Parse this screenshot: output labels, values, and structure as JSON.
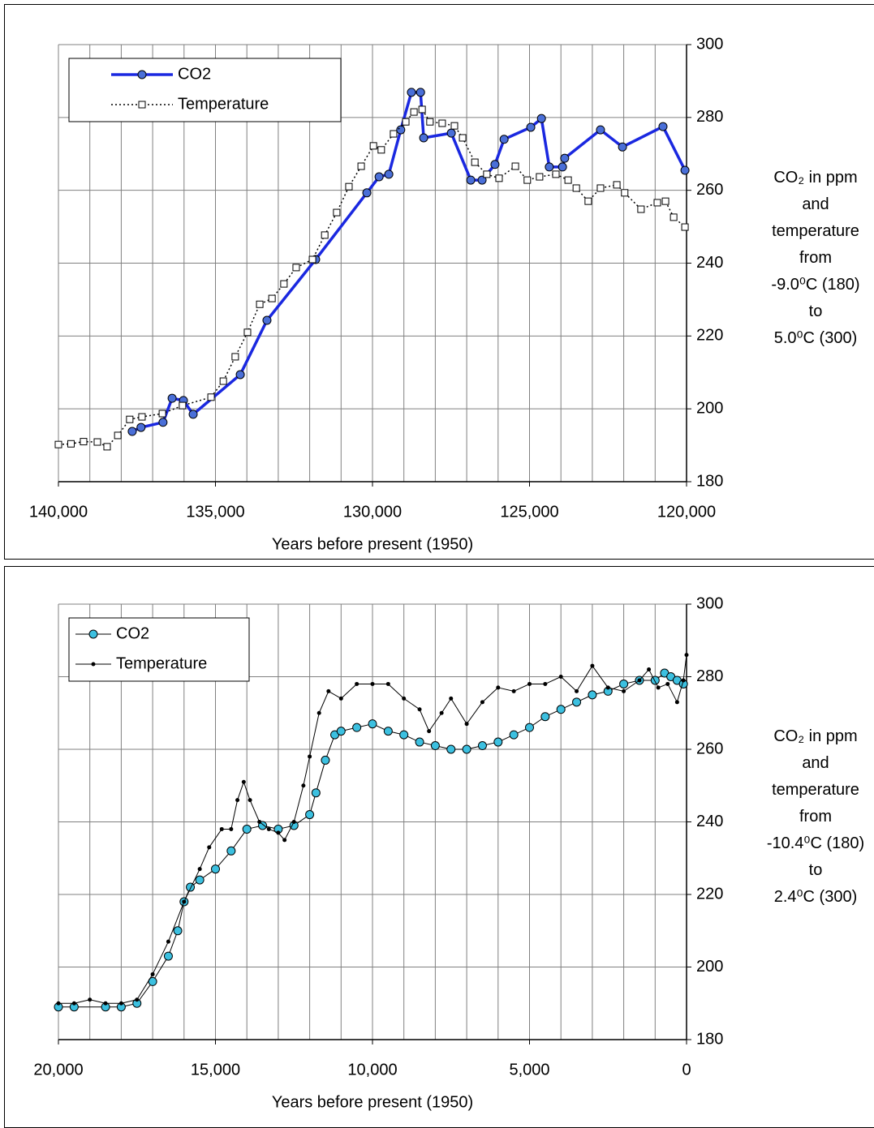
{
  "chart_data": [
    {
      "type": "line",
      "x_label": "Years before present (1950)",
      "y_label": [
        "CO₂ in ppm",
        "and",
        "temperature",
        "from",
        "-9.0⁰C (180)",
        "to",
        "5.0⁰C (300)"
      ],
      "xlim": [
        140000,
        120000
      ],
      "xticks": [
        {
          "value": 140000,
          "label": "140,000"
        },
        {
          "value": 135000,
          "label": "135,000"
        },
        {
          "value": 130000,
          "label": "130,000"
        },
        {
          "value": 125000,
          "label": "125,000"
        },
        {
          "value": 120000,
          "label": "120,000"
        }
      ],
      "x_minor_ticks": [
        139000,
        138000,
        137000,
        136000,
        134000,
        133000,
        132000,
        131000,
        129000,
        128000,
        127000,
        126000,
        124000,
        123000,
        122000,
        121000
      ],
      "ylim": [
        180,
        300
      ],
      "yticks": [
        180,
        200,
        220,
        240,
        260,
        280,
        300
      ],
      "grid": true,
      "legend": "upper left",
      "series": [
        {
          "name": "CO2",
          "color": "#1a28e0",
          "marker": "circle",
          "marker_color": "#4a6fd8",
          "line_style": "solid",
          "line_width": 3.5,
          "x": [
            137650,
            137370,
            136670,
            136380,
            136020,
            135710,
            134210,
            133360,
            131810,
            130180,
            129790,
            129480,
            129100,
            128760,
            128470,
            128370,
            127490,
            126870,
            126510,
            126100,
            125810,
            124960,
            124620,
            124370,
            123950,
            123880,
            122740,
            122040,
            120750,
            120050
          ],
          "values": [
            193.8,
            194.9,
            196.3,
            202.9,
            202.3,
            198.5,
            209.4,
            224.3,
            241.0,
            259.3,
            263.7,
            264.4,
            276.6,
            286.9,
            286.9,
            274.4,
            275.7,
            262.8,
            262.8,
            267.1,
            274.0,
            277.3,
            279.7,
            266.4,
            266.4,
            268.8,
            276.6,
            271.9,
            277.5,
            265.5
          ]
        },
        {
          "name": "Temperature",
          "color": "#000000",
          "marker": "square",
          "marker_color": "#ffffff",
          "line_style": "dotted",
          "line_width": 1.5,
          "x": [
            140000,
            139600,
            139200,
            138760,
            138450,
            138110,
            137730,
            137340,
            136690,
            136050,
            135140,
            134750,
            134370,
            133980,
            133590,
            133200,
            132820,
            132430,
            131910,
            131520,
            131140,
            130750,
            130360,
            129970,
            129720,
            129330,
            128940,
            128680,
            128420,
            128170,
            127780,
            127390,
            127130,
            126740,
            126360,
            125970,
            125450,
            125070,
            124680,
            124160,
            123770,
            123510,
            123130,
            122740,
            122220,
            121970,
            121450,
            120930,
            120670,
            120410,
            120050
          ],
          "values": [
            190.2,
            190.4,
            191.0,
            190.9,
            189.6,
            192.7,
            197.1,
            197.8,
            198.7,
            200.9,
            203.2,
            207.6,
            214.3,
            221.0,
            228.7,
            230.3,
            234.3,
            238.8,
            241.0,
            247.7,
            253.9,
            261.0,
            266.6,
            272.2,
            271.1,
            275.5,
            278.8,
            281.5,
            282.2,
            278.8,
            278.4,
            277.7,
            274.4,
            267.7,
            264.4,
            263.3,
            266.6,
            262.8,
            263.7,
            264.4,
            262.8,
            260.6,
            257.0,
            260.6,
            261.5,
            259.3,
            254.8,
            256.6,
            257.0,
            252.6,
            249.9
          ]
        }
      ]
    },
    {
      "type": "line",
      "x_label": "Years before present (1950)",
      "y_label": [
        "CO₂ in ppm",
        "and",
        "temperature",
        "from",
        "-10.4⁰C (180)",
        "to",
        "2.4⁰C (300)"
      ],
      "xlim": [
        20000,
        0
      ],
      "xticks": [
        {
          "value": 20000,
          "label": "20,000"
        },
        {
          "value": 15000,
          "label": "15,000"
        },
        {
          "value": 10000,
          "label": "10,000"
        },
        {
          "value": 5000,
          "label": "5,000"
        },
        0
      ],
      "x_minor_ticks": [
        19000,
        18000,
        17000,
        16000,
        14000,
        13000,
        12000,
        11000,
        9000,
        8000,
        7000,
        6000,
        4000,
        3000,
        2000,
        1000
      ],
      "ylim": [
        180,
        300
      ],
      "yticks": [
        180,
        200,
        220,
        240,
        260,
        280,
        300
      ],
      "grid": true,
      "legend": "upper left",
      "series": [
        {
          "name": "CO2",
          "color": "#000000",
          "marker": "circle",
          "marker_color": "#3cc0e0",
          "line_style": "solid",
          "line_width": 1,
          "x": [
            20000,
            19500,
            18500,
            18000,
            17500,
            17000,
            16500,
            16200,
            16000,
            15800,
            15500,
            15000,
            14500,
            14000,
            13500,
            13000,
            12500,
            12000,
            11800,
            11500,
            11200,
            11000,
            10500,
            10000,
            9500,
            9000,
            8500,
            8000,
            7500,
            7000,
            6500,
            6000,
            5500,
            5000,
            4500,
            4000,
            3500,
            3000,
            2500,
            2000,
            1500,
            1000,
            700,
            500,
            300,
            100
          ],
          "values": [
            189,
            189,
            189,
            189,
            190,
            196,
            203,
            210,
            218,
            222,
            224,
            227,
            232,
            238,
            239,
            238,
            239,
            242,
            248,
            257,
            264,
            265,
            266,
            267,
            265,
            264,
            262,
            261,
            260,
            260,
            261,
            262,
            264,
            266,
            269,
            271,
            273,
            275,
            276,
            278,
            279,
            279,
            281,
            280,
            279,
            278
          ]
        },
        {
          "name": "Temperature",
          "color": "#000000",
          "marker": "dot",
          "marker_color": "#000000",
          "line_style": "solid",
          "line_width": 1,
          "x": [
            20000,
            19500,
            19000,
            18500,
            18000,
            17500,
            17000,
            16500,
            16000,
            15500,
            15200,
            14800,
            14500,
            14300,
            14100,
            13900,
            13600,
            13300,
            13000,
            12800,
            12500,
            12200,
            12000,
            11700,
            11400,
            11000,
            10500,
            10000,
            9500,
            9000,
            8500,
            8200,
            7800,
            7500,
            7000,
            6500,
            6000,
            5500,
            5000,
            4500,
            4000,
            3500,
            3000,
            2500,
            2000,
            1500,
            1200,
            900,
            600,
            300,
            100,
            0
          ],
          "values": [
            190,
            190,
            191,
            190,
            190,
            191,
            198,
            207,
            218,
            227,
            233,
            238,
            238,
            246,
            251,
            246,
            240,
            238,
            237,
            235,
            240,
            250,
            258,
            270,
            276,
            274,
            278,
            278,
            278,
            274,
            271,
            265,
            270,
            274,
            267,
            273,
            277,
            276,
            278,
            278,
            280,
            276,
            283,
            277,
            276,
            279,
            282,
            277,
            278,
            273,
            279,
            286
          ]
        }
      ]
    }
  ]
}
